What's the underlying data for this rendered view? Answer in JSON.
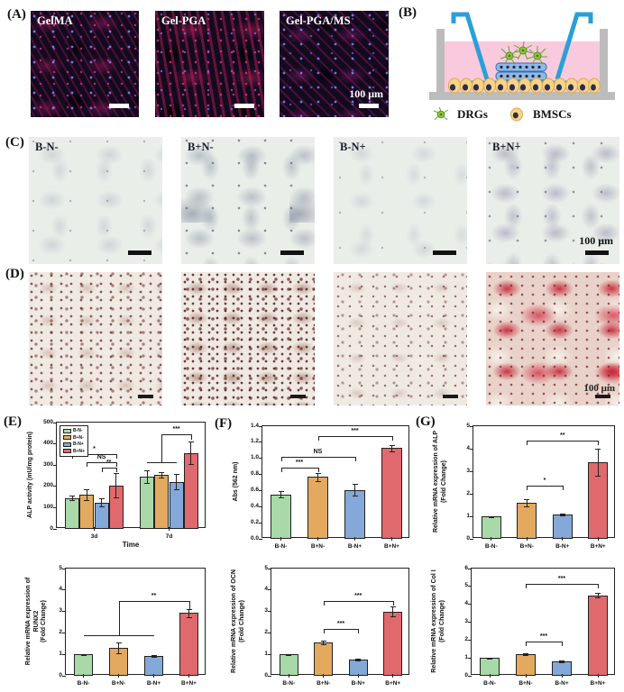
{
  "figure": {
    "panel_labels": {
      "A": "(A)",
      "B": "(B)",
      "C": "(C)",
      "D": "(D)",
      "E": "(E)",
      "F": "(F)",
      "G": "(G)"
    }
  },
  "panelA": {
    "images": [
      {
        "label": "GelMA"
      },
      {
        "label": "Gel-PGA"
      },
      {
        "label": "Gel-PGA/MS",
        "scale_text": "100 μm"
      }
    ]
  },
  "panelB": {
    "legend": [
      {
        "icon": "drg-cell-icon",
        "label": "DRGs"
      },
      {
        "icon": "bmsc-cell-icon",
        "label": "BMSCs"
      }
    ]
  },
  "panelC": {
    "images": [
      {
        "label": "B-N-"
      },
      {
        "label": "B+N-"
      },
      {
        "label": "B-N+"
      },
      {
        "label": "B+N+",
        "scale_text": "100 μm"
      }
    ]
  },
  "panelD": {
    "scale_text": "100 μm"
  },
  "colors": {
    "green": "#a9d9a9",
    "orange": "#e2a95f",
    "blue": "#84a8d8",
    "red": "#e0696e",
    "axis": "#222222",
    "insert_blue": "#2a9fd8",
    "medium_pink": "#f9cade",
    "dish_gray": "#bcbcbc",
    "drg_green": "#8ec63f",
    "bmsc_yellow": "#f6d488"
  },
  "chart_data": [
    {
      "type": "bar",
      "panel": "E",
      "ylabel": "ALP activity (mU/mg protein)",
      "xlabel": "Time",
      "categories": [
        "3d",
        "7d"
      ],
      "series": [
        {
          "name": "B-N-",
          "color": "#a9d9a9",
          "values": [
            145,
            245
          ],
          "errors": [
            10,
            30
          ]
        },
        {
          "name": "B+N-",
          "color": "#e2a95f",
          "values": [
            160,
            255
          ],
          "errors": [
            25,
            12
          ]
        },
        {
          "name": "B-N+",
          "color": "#84a8d8",
          "values": [
            125,
            222
          ],
          "errors": [
            20,
            35
          ]
        },
        {
          "name": "B+N+",
          "color": "#e0696e",
          "values": [
            205,
            358
          ],
          "errors": [
            58,
            52
          ]
        }
      ],
      "ylim": [
        0,
        500
      ],
      "yticks": [
        "0",
        "100",
        "200",
        "300",
        "400",
        "500"
      ],
      "legend": true,
      "legend_position": "top-left",
      "grid": false,
      "annotations": [
        {
          "kind": "bracket",
          "label": "*",
          "x1": 0,
          "x2": 3,
          "y": 350
        },
        {
          "kind": "bracket",
          "label": "NS",
          "x1": 1,
          "x2": 3,
          "y": 315
        },
        {
          "kind": "bracket",
          "label": "**",
          "x1": 2,
          "x2": 3,
          "y": 288
        },
        {
          "kind": "line",
          "x1": 4,
          "x2": 6,
          "y": 315
        },
        {
          "kind": "bracket",
          "label": "***",
          "x1": 5,
          "x2": 7,
          "y": 445,
          "drop1": 130,
          "drop2": 25
        }
      ]
    },
    {
      "type": "bar",
      "panel": "F",
      "ylabel": "Abs (562 nm)",
      "xlabel": "",
      "categories": [
        "B-N-",
        "B+N-",
        "B-N+",
        "B+N+"
      ],
      "values": [
        0.55,
        0.77,
        0.61,
        1.13
      ],
      "errors": [
        0.04,
        0.05,
        0.07,
        0.04
      ],
      "colors": [
        "#a9d9a9",
        "#e2a95f",
        "#84a8d8",
        "#e0696e"
      ],
      "ylim": [
        0,
        1.4
      ],
      "yticks": [
        "0.0",
        "0.2",
        "0.4",
        "0.6",
        "0.8",
        "1.0",
        "1.2",
        "1.4"
      ],
      "grid": false,
      "annotations": [
        {
          "kind": "bracket",
          "label": "***",
          "x1": 0,
          "x2": 1,
          "y": 0.88
        },
        {
          "kind": "bracket",
          "label": "NS",
          "x1": 0,
          "x2": 2,
          "y": 1.02
        },
        {
          "kind": "bracket",
          "label": "***",
          "x1": 1,
          "x2": 3,
          "y": 1.28
        }
      ]
    },
    {
      "type": "bar",
      "panel": "G",
      "ylabel": "Relative mRNA expression of ALP\n(Fold Change)",
      "xlabel": "",
      "categories": [
        "B-N-",
        "B+N-",
        "B-N+",
        "B+N+"
      ],
      "values": [
        1.0,
        1.6,
        1.1,
        3.4
      ],
      "errors": [
        0.02,
        0.15,
        0.04,
        0.6
      ],
      "colors": [
        "#a9d9a9",
        "#e2a95f",
        "#84a8d8",
        "#e0696e"
      ],
      "ylim": [
        0,
        5
      ],
      "yticks": [
        "0",
        "1",
        "2",
        "3",
        "4",
        "5"
      ],
      "grid": false,
      "annotations": [
        {
          "kind": "bracket",
          "label": "*",
          "x1": 1,
          "x2": 2,
          "y": 2.35
        },
        {
          "kind": "bracket",
          "label": "**",
          "x1": 1,
          "x2": 3,
          "y": 4.35
        }
      ]
    },
    {
      "type": "bar",
      "panel": "bottom-left",
      "ylabel": "Relative mRNA expression of RUNX2\n(Fold Change)",
      "xlabel": "",
      "categories": [
        "B-N-",
        "B+N-",
        "B-N+",
        "B+N+"
      ],
      "values": [
        1.0,
        1.3,
        0.93,
        2.93
      ],
      "errors": [
        0.02,
        0.25,
        0.05,
        0.2
      ],
      "colors": [
        "#a9d9a9",
        "#e2a95f",
        "#84a8d8",
        "#e0696e"
      ],
      "ylim": [
        0,
        5
      ],
      "yticks": [
        "0",
        "1",
        "2",
        "3",
        "4",
        "5"
      ],
      "grid": false,
      "annotations": [
        {
          "kind": "line",
          "x1": 0,
          "x2": 2,
          "y": 1.87
        },
        {
          "kind": "bracket",
          "label": "**",
          "x1": 1,
          "x2": 3,
          "y": 3.47,
          "drop1": 1.6,
          "drop2": 0.35
        }
      ]
    },
    {
      "type": "bar",
      "panel": "bottom-middle",
      "ylabel": "Relative mRNA expression of OCN\n(Fold Change)",
      "xlabel": "",
      "categories": [
        "B-N-",
        "B+N-",
        "B-N+",
        "B+N+"
      ],
      "values": [
        1.0,
        1.55,
        0.75,
        3.0
      ],
      "errors": [
        0.02,
        0.1,
        0.04,
        0.22
      ],
      "colors": [
        "#a9d9a9",
        "#e2a95f",
        "#84a8d8",
        "#e0696e"
      ],
      "ylim": [
        0,
        5
      ],
      "yticks": [
        "0",
        "1",
        "2",
        "3",
        "4",
        "5"
      ],
      "grid": false,
      "annotations": [
        {
          "kind": "bracket",
          "label": "***",
          "x1": 1,
          "x2": 2,
          "y": 2.2
        },
        {
          "kind": "bracket",
          "label": "***",
          "x1": 1,
          "x2": 3,
          "y": 3.5
        }
      ]
    },
    {
      "type": "bar",
      "panel": "bottom-right",
      "ylabel": "Relative mRNA expression of Col I\n(Fold Change)",
      "xlabel": "",
      "categories": [
        "B-N-",
        "B+N-",
        "B-N+",
        "B+N+"
      ],
      "values": [
        1.0,
        1.2,
        0.82,
        4.5
      ],
      "errors": [
        0.02,
        0.06,
        0.05,
        0.12
      ],
      "colors": [
        "#a9d9a9",
        "#e2a95f",
        "#84a8d8",
        "#e0696e"
      ],
      "ylim": [
        0,
        6
      ],
      "yticks": [
        "0",
        "1",
        "2",
        "3",
        "4",
        "5",
        "6"
      ],
      "grid": false,
      "annotations": [
        {
          "kind": "bracket",
          "label": "***",
          "x1": 1,
          "x2": 2,
          "y": 1.9
        },
        {
          "kind": "bracket",
          "label": "***",
          "x1": 1,
          "x2": 3,
          "y": 5.15
        }
      ]
    }
  ]
}
